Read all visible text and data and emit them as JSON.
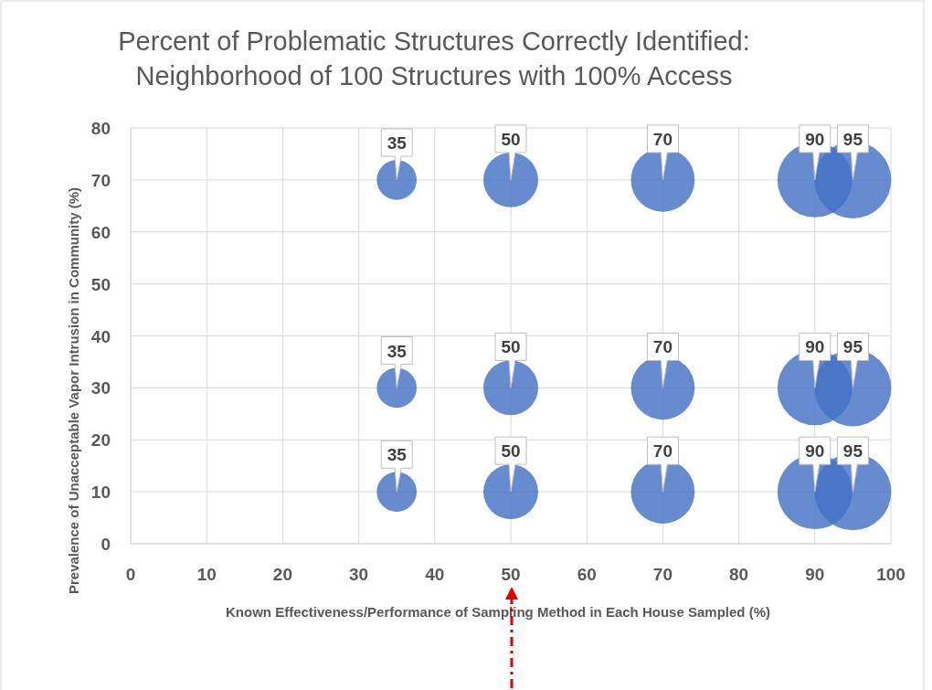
{
  "chart_data": {
    "type": "bubble",
    "title": "Percent of Problematic Structures Correctly Identified:\nNeighborhood of 100 Structures with 100% Access",
    "xlabel": "Known Effectiveness/Performance of Sampling Method in Each House Sampled (%)",
    "ylabel": "Prevalence of Unacceptable  Vapor Intrusion in Community  (%)",
    "series": [
      {
        "color": "#4472c4",
        "x": [
          35,
          50,
          70,
          90,
          95,
          35,
          50,
          70,
          90,
          95,
          35,
          50,
          70,
          90,
          95
        ],
        "values": [
          70,
          70,
          70,
          70,
          70,
          30,
          30,
          30,
          30,
          30,
          10,
          10,
          10,
          10,
          10
        ],
        "sizes": [
          0.27,
          0.51,
          0.69,
          0.95,
          1,
          0.27,
          0.51,
          0.69,
          0.95,
          1,
          0.27,
          0.51,
          0.69,
          0.95,
          1
        ]
      }
    ],
    "annotations": [
      {
        "text": "35",
        "x": 35,
        "y": 70
      },
      {
        "text": "50",
        "x": 50,
        "y": 70
      },
      {
        "text": "70",
        "x": 70,
        "y": 70
      },
      {
        "text": "90",
        "x": 90,
        "y": 70
      },
      {
        "text": "95",
        "x": 95,
        "y": 70
      },
      {
        "text": "35",
        "x": 35,
        "y": 30
      },
      {
        "text": "50",
        "x": 50,
        "y": 30
      },
      {
        "text": "70",
        "x": 70,
        "y": 30
      },
      {
        "text": "90",
        "x": 90,
        "y": 30
      },
      {
        "text": "95",
        "x": 95,
        "y": 30
      },
      {
        "text": "35",
        "x": 35,
        "y": 10
      },
      {
        "text": "50",
        "x": 50,
        "y": 10
      },
      {
        "text": "70",
        "x": 70,
        "y": 10
      },
      {
        "text": "90",
        "x": 90,
        "y": 10
      },
      {
        "text": "95",
        "x": 95,
        "y": 10
      }
    ],
    "xlim": [
      0,
      100
    ],
    "xticks": [
      0,
      10,
      20,
      30,
      40,
      50,
      60,
      70,
      80,
      90,
      100
    ],
    "ylim": [
      0,
      80
    ],
    "yticks": [
      0,
      10,
      20,
      30,
      40,
      50,
      60,
      70,
      80
    ],
    "grid": true
  }
}
